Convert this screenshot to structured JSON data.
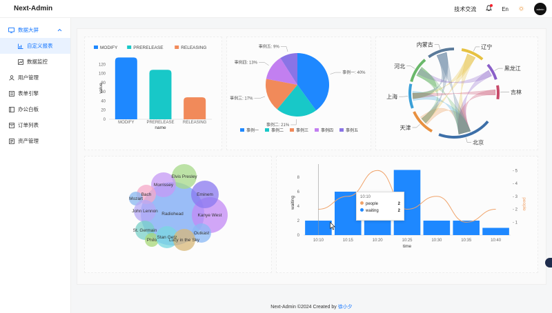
{
  "app": {
    "title": "Next-Admin"
  },
  "header": {
    "tech_label": "技术交流",
    "lang_label": "En",
    "avatar_label": "admin"
  },
  "sidebar": {
    "items": [
      {
        "label": "数据大屏",
        "icon": "monitor-icon"
      },
      {
        "label": "自定义报表",
        "icon": "chart-icon"
      },
      {
        "label": "数据监控",
        "icon": "line-chart-icon"
      },
      {
        "label": "用户管理",
        "icon": "user-icon"
      },
      {
        "label": "表单引擎",
        "icon": "form-icon"
      },
      {
        "label": "办公白板",
        "icon": "board-icon"
      },
      {
        "label": "订单列表",
        "icon": "order-icon"
      },
      {
        "label": "资产管理",
        "icon": "asset-icon"
      }
    ]
  },
  "footer": {
    "text": "Next-Admin ©2024 Created by",
    "author": "徐小夕"
  },
  "colors": {
    "accent": "#1677ff",
    "sidebar_active_bg": "#e9f2ff"
  },
  "chart_data": [
    {
      "type": "bar",
      "legend": [
        "MODIFY",
        "PRERELEASE",
        "RELEASING"
      ],
      "categories": [
        "MODIFY",
        "PRERELEASE",
        "RELEASING"
      ],
      "values": [
        135,
        108,
        48
      ],
      "colors": [
        "#1e88ff",
        "#18c8c8",
        "#f18a5a"
      ],
      "xlabel": "name",
      "ylabel": "value",
      "yticks": [
        "0",
        "20",
        "40",
        "60",
        "80",
        "100",
        "120"
      ],
      "ylim": [
        0,
        140
      ]
    },
    {
      "type": "pie",
      "slices": [
        {
          "name": "事例一",
          "value": 40,
          "label": "事例一: 40%",
          "color": "#1e88ff"
        },
        {
          "name": "事例二",
          "value": 21,
          "label": "事例二: 21%",
          "color": "#18c8c8"
        },
        {
          "name": "事例三",
          "value": 17,
          "label": "事例三: 17%",
          "color": "#f18a5a"
        },
        {
          "name": "事例四",
          "value": 13,
          "label": "事例四: 13%",
          "color": "#c27ff0"
        },
        {
          "name": "事例五",
          "value": 9,
          "label": "事例五: 9%",
          "color": "#8a74e6"
        }
      ]
    },
    {
      "type": "chord",
      "nodes": [
        {
          "name": "辽宁",
          "color": "#e6c140"
        },
        {
          "name": "黑龙江",
          "color": "#8a5fc8"
        },
        {
          "name": "吉林",
          "color": "#c84a6a"
        },
        {
          "name": "北京",
          "color": "#3d6fa8"
        },
        {
          "name": "天津",
          "color": "#e89040"
        },
        {
          "name": "上海",
          "color": "#3aa0d8"
        },
        {
          "name": "河北",
          "color": "#6ab86a"
        },
        {
          "name": "内蒙古",
          "color": "#5a7a9a"
        }
      ]
    },
    {
      "type": "bubble",
      "bubbles": [
        {
          "name": "Radiohead",
          "color": "#7aa8f5"
        },
        {
          "name": "Kanye West",
          "color": "#c38af5"
        },
        {
          "name": "Eminem",
          "color": "#8a78f0"
        },
        {
          "name": "Elvis Presley",
          "color": "#a7d98a"
        },
        {
          "name": "Morrissey",
          "color": "#c59af5"
        },
        {
          "name": "Bach",
          "color": "#f5a8c8"
        },
        {
          "name": "Mozart",
          "color": "#8ab8f0"
        },
        {
          "name": "John Lennon",
          "color": "#b5a8f5"
        },
        {
          "name": "Outkast",
          "color": "#8ab8f5"
        },
        {
          "name": "St. Germain",
          "color": "#7ad0c8"
        },
        {
          "name": "Philo",
          "color": "#a8d878"
        },
        {
          "name": "Stan Getz",
          "color": "#78d8e0"
        },
        {
          "name": "Lucy in the Sky",
          "color": "#d8b878"
        }
      ]
    },
    {
      "type": "bar+line",
      "categories": [
        "10:10",
        "10:15",
        "10:20",
        "10:25",
        "10:30",
        "10:35",
        "10:40"
      ],
      "series": [
        {
          "name": "waiting",
          "type": "bar",
          "values": [
            2,
            6,
            4,
            9,
            2,
            2,
            1
          ],
          "color": "#1e88ff"
        },
        {
          "name": "people",
          "type": "line",
          "values": [
            2,
            3,
            5,
            2,
            3,
            1,
            2
          ],
          "color": "#f0a36a"
        }
      ],
      "xlabel": "time",
      "ylabel": "waiting",
      "ylabel_right": "people",
      "yticks": [
        "0",
        "2",
        "4",
        "6",
        "8"
      ],
      "yticks_right": [
        "1",
        "2",
        "3",
        "4",
        "5"
      ],
      "ylim": [
        0,
        10
      ],
      "tooltip": {
        "title": "10:10",
        "rows": [
          {
            "name": "people",
            "value": "2"
          },
          {
            "name": "waiting",
            "value": "2"
          }
        ]
      }
    }
  ]
}
